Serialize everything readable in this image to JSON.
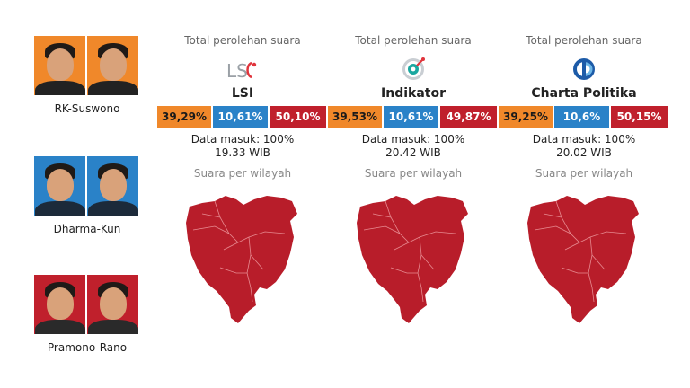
{
  "colors": {
    "rk": "#f0882a",
    "dharma": "#2a82c8",
    "pramono": "#c0202c",
    "map_fill": "#b81d2a"
  },
  "candidates": [
    {
      "name": "RK-Suswono",
      "bg": "#f0882a"
    },
    {
      "name": "Dharma-Kun",
      "bg": "#2a82c8"
    },
    {
      "name": "Pramono-Rano",
      "bg": "#c0202c"
    }
  ],
  "chart_data": [
    {
      "type": "bar",
      "title": "LSI",
      "subtitle": "Total perolehan suara",
      "categories": [
        "RK-Suswono",
        "Dharma-Kun",
        "Pramono-Rano"
      ],
      "values": [
        39.29,
        10.61,
        50.1
      ],
      "labels": [
        "39,29%",
        "10,61%",
        "50,10%"
      ],
      "data_in": "Data masuk: 100%",
      "time": "19.33 WIB",
      "map_label": "Suara per wilayah",
      "logo_icon": "lsi-logo-icon"
    },
    {
      "type": "bar",
      "title": "Indikator",
      "subtitle": "Total perolehan suara",
      "categories": [
        "RK-Suswono",
        "Dharma-Kun",
        "Pramono-Rano"
      ],
      "values": [
        39.53,
        10.61,
        49.87
      ],
      "labels": [
        "39,53%",
        "10,61%",
        "49,87%"
      ],
      "data_in": "Data masuk: 100%",
      "time": "20.42 WIB",
      "map_label": "Suara per wilayah",
      "logo_icon": "indikator-logo-icon"
    },
    {
      "type": "bar",
      "title": "Charta Politika",
      "subtitle": "Total perolehan suara",
      "categories": [
        "RK-Suswono",
        "Dharma-Kun",
        "Pramono-Rano"
      ],
      "values": [
        39.25,
        10.6,
        50.15
      ],
      "labels": [
        "39,25%",
        "10,6%",
        "50,15%"
      ],
      "data_in": "Data masuk: 100%",
      "time": "20.02 WIB",
      "map_label": "Suara per wilayah",
      "logo_icon": "charta-politika-logo-icon"
    }
  ]
}
